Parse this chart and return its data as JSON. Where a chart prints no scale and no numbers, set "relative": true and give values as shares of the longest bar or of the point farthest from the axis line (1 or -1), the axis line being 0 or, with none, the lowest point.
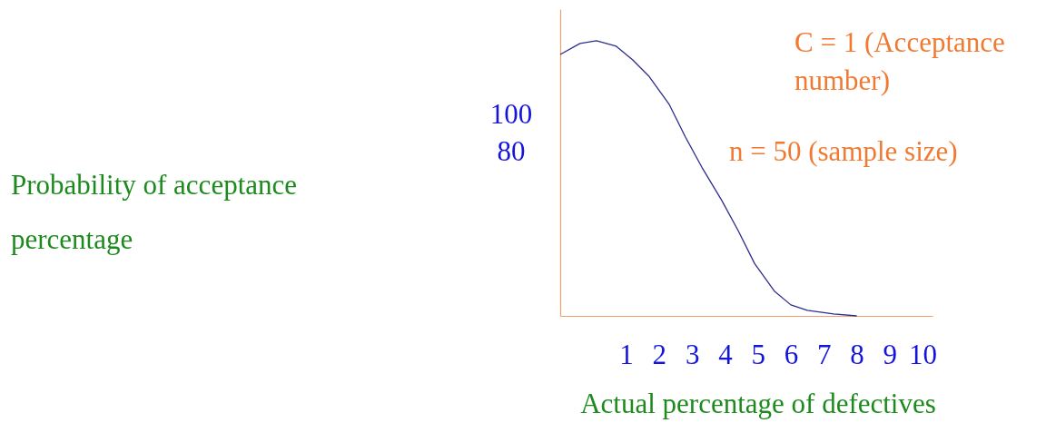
{
  "chart_data": {
    "type": "line",
    "relative": true,
    "xlabel": "Actual percentage of defectives",
    "annotations": [
      "100",
      "80",
      "C = 1 (Acceptance\nnumber)",
      "n = 50 (sample size)",
      "Probability of acceptance\npercentage"
    ],
    "xlim": [
      -1,
      10.3
    ],
    "xticks": [
      1,
      2,
      3,
      4,
      5,
      6,
      7,
      8,
      9,
      10
    ],
    "x": [
      -1.0,
      -0.4,
      0.1,
      0.7,
      1.2,
      1.7,
      2.3,
      2.8,
      3.3,
      3.9,
      4.4,
      4.9,
      5.5,
      6.0,
      6.5,
      7.3,
      8.0
    ],
    "series": [
      {
        "color": "#2e2e8c",
        "values": [
          0.95,
          0.99,
          1.0,
          0.98,
          0.93,
          0.87,
          0.77,
          0.65,
          0.54,
          0.42,
          0.31,
          0.19,
          0.09,
          0.04,
          0.02,
          0.007,
          0.0
        ]
      }
    ],
    "grid": false,
    "marker": "none",
    "line_style": "solid"
  }
}
